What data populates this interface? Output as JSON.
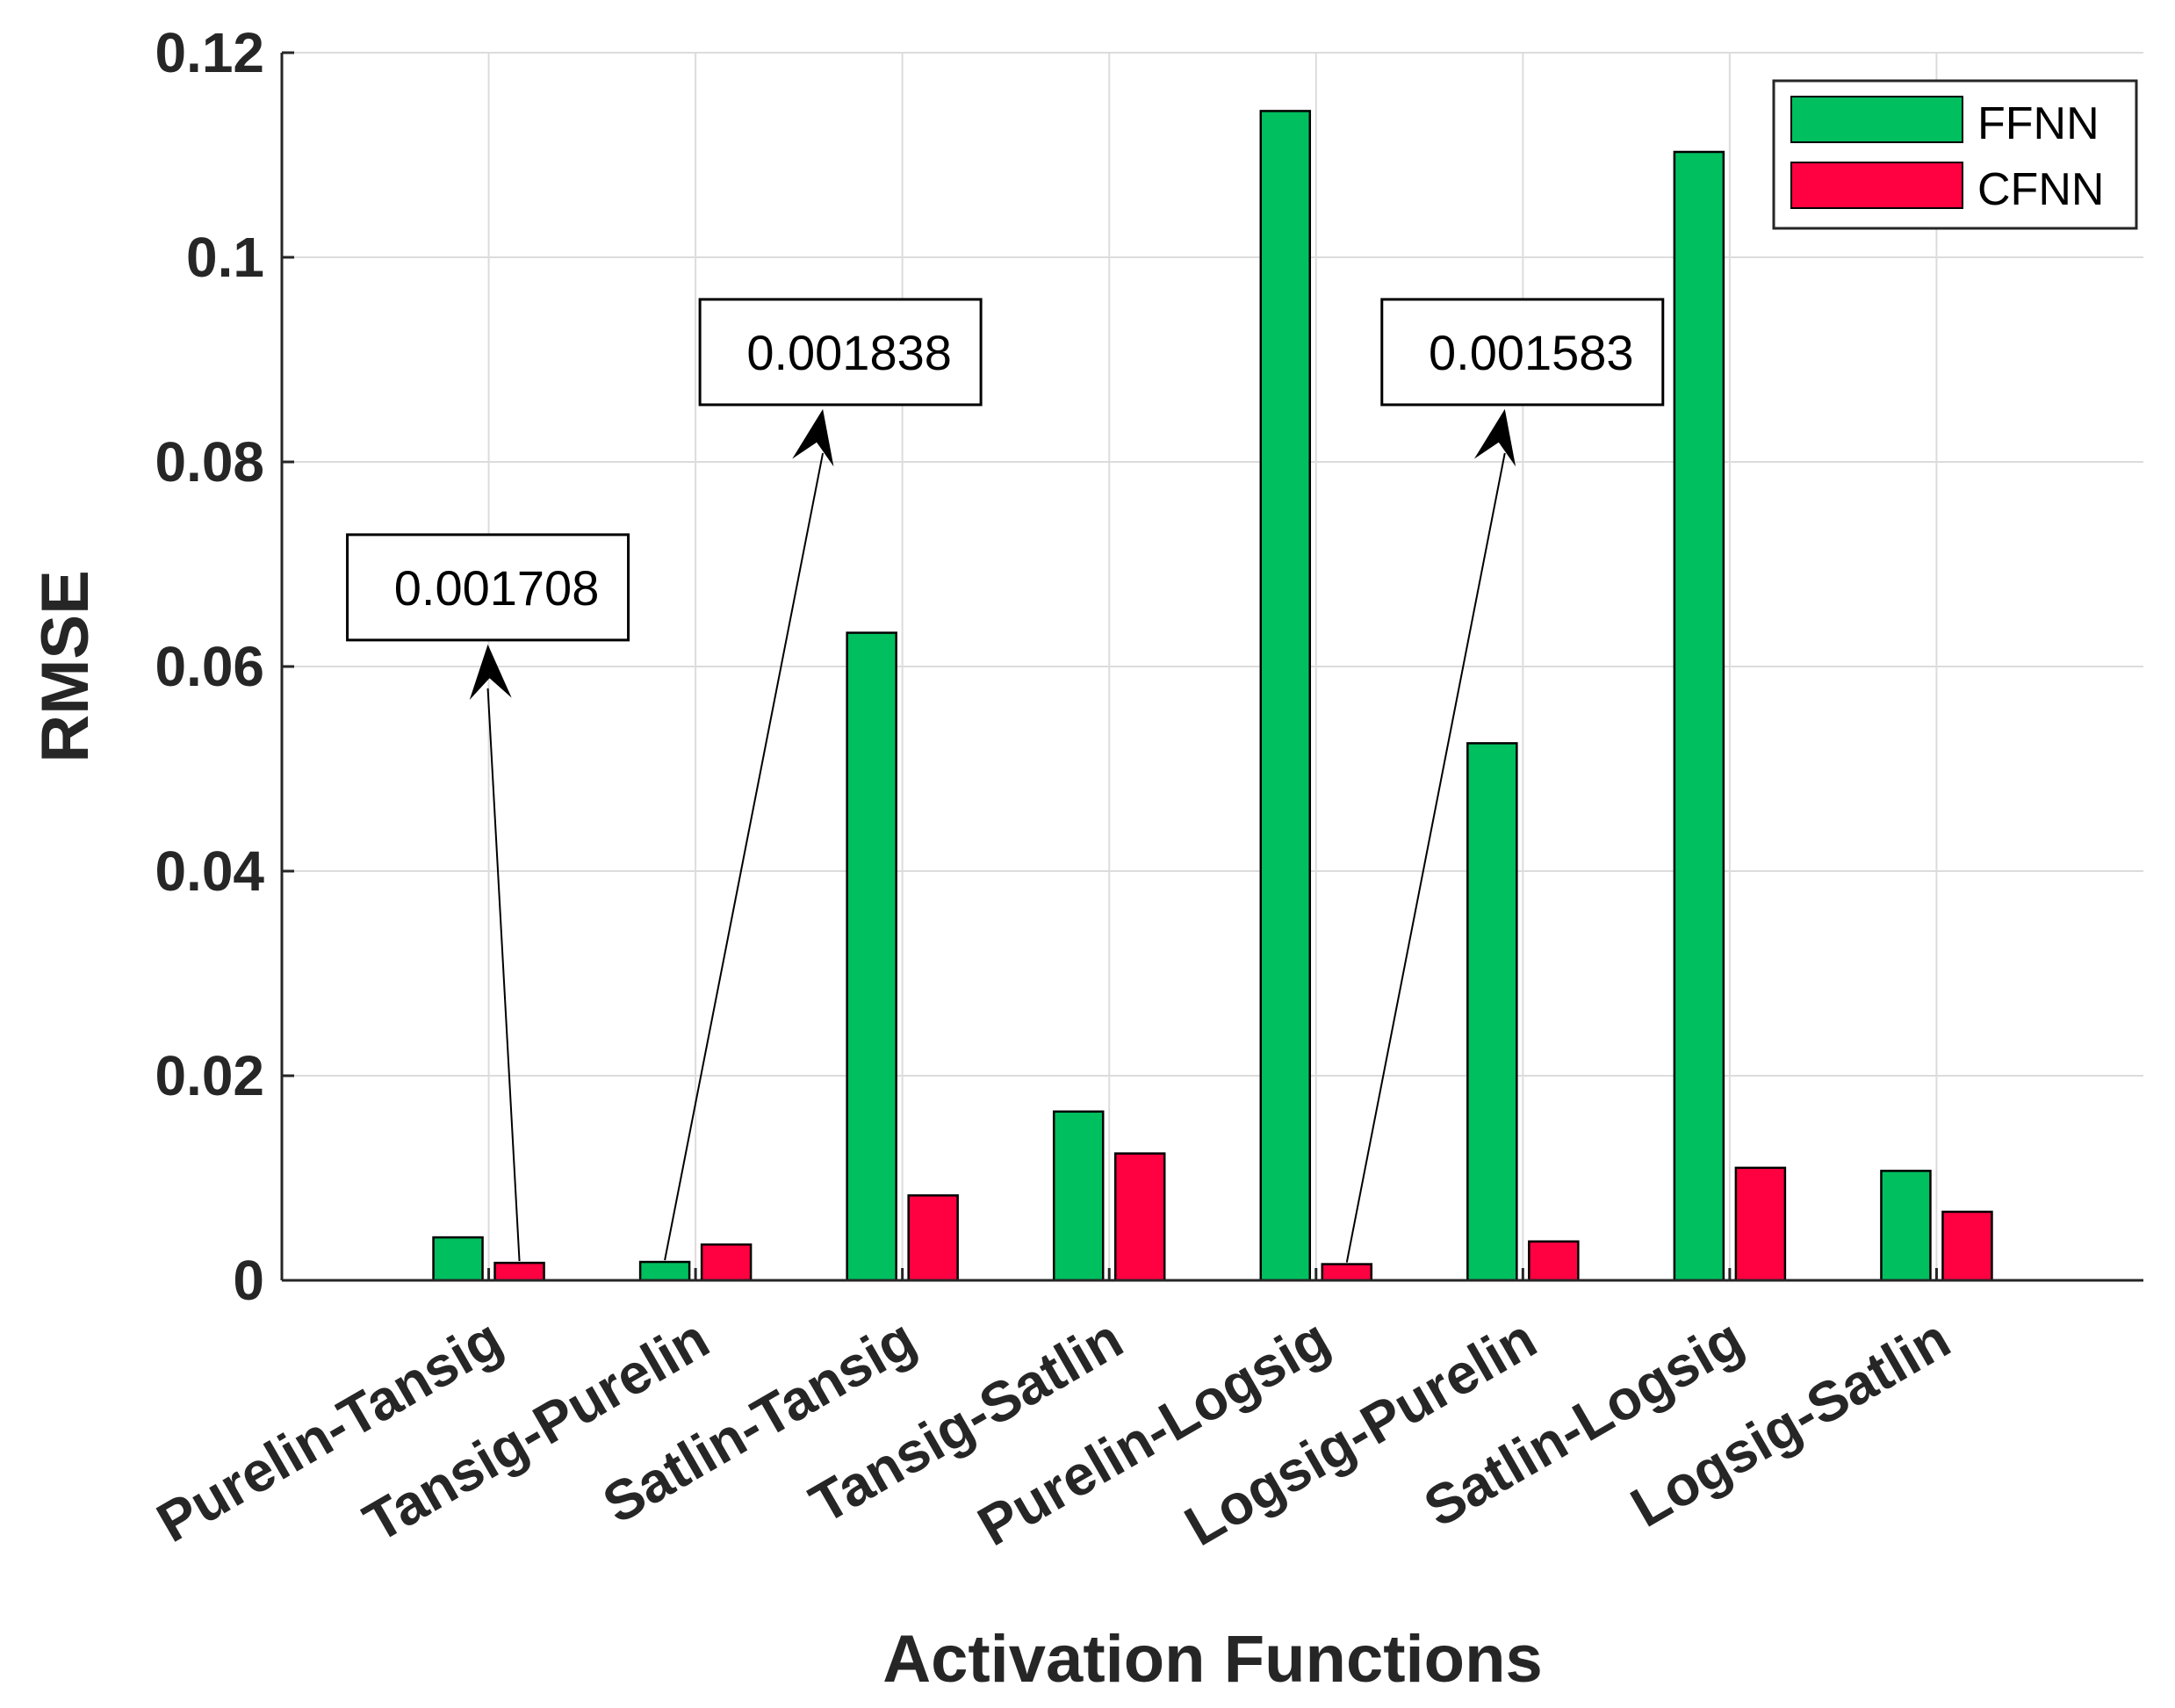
{
  "chart_data": {
    "type": "bar",
    "title": "",
    "xlabel": "Activation Functions",
    "ylabel": "RMSE",
    "ylim": [
      0,
      0.12
    ],
    "yticks": [
      0,
      0.02,
      0.04,
      0.06,
      0.08,
      0.1,
      0.12
    ],
    "ytick_labels": [
      "0",
      "0.02",
      "0.04",
      "0.06",
      "0.08",
      "0.1",
      "0.12"
    ],
    "grid": true,
    "legend_position": "top-right",
    "categories": [
      "Purelin-Tansig",
      "Tansig-Purelin",
      "Satlin-Tansig",
      "Tansig-Satlin",
      "Purelin-Logsig",
      "Logsig-Purelin",
      "Satlin-Logsig",
      "Logsig-Satlin"
    ],
    "series": [
      {
        "name": "FFNN",
        "color": "#00bf5f",
        "values": [
          0.0042,
          0.0018,
          0.0633,
          0.0165,
          0.1143,
          0.0525,
          0.1103,
          0.0107
        ]
      },
      {
        "name": "CFNN",
        "color": "#ff0040",
        "values": [
          0.001708,
          0.0035,
          0.0083,
          0.0124,
          0.001583,
          0.0038,
          0.011,
          0.0067
        ]
      }
    ],
    "annotations": [
      {
        "text": "0.001708",
        "series": "CFNN",
        "category": "Purelin-Tansig",
        "box_at": 0.0625
      },
      {
        "text": "0.001838",
        "series": "FFNN",
        "category": "Tansig-Purelin",
        "box_at": 0.0855
      },
      {
        "text": "0.001583",
        "series": "CFNN",
        "category": "Purelin-Logsig",
        "box_at": 0.0855
      }
    ]
  }
}
